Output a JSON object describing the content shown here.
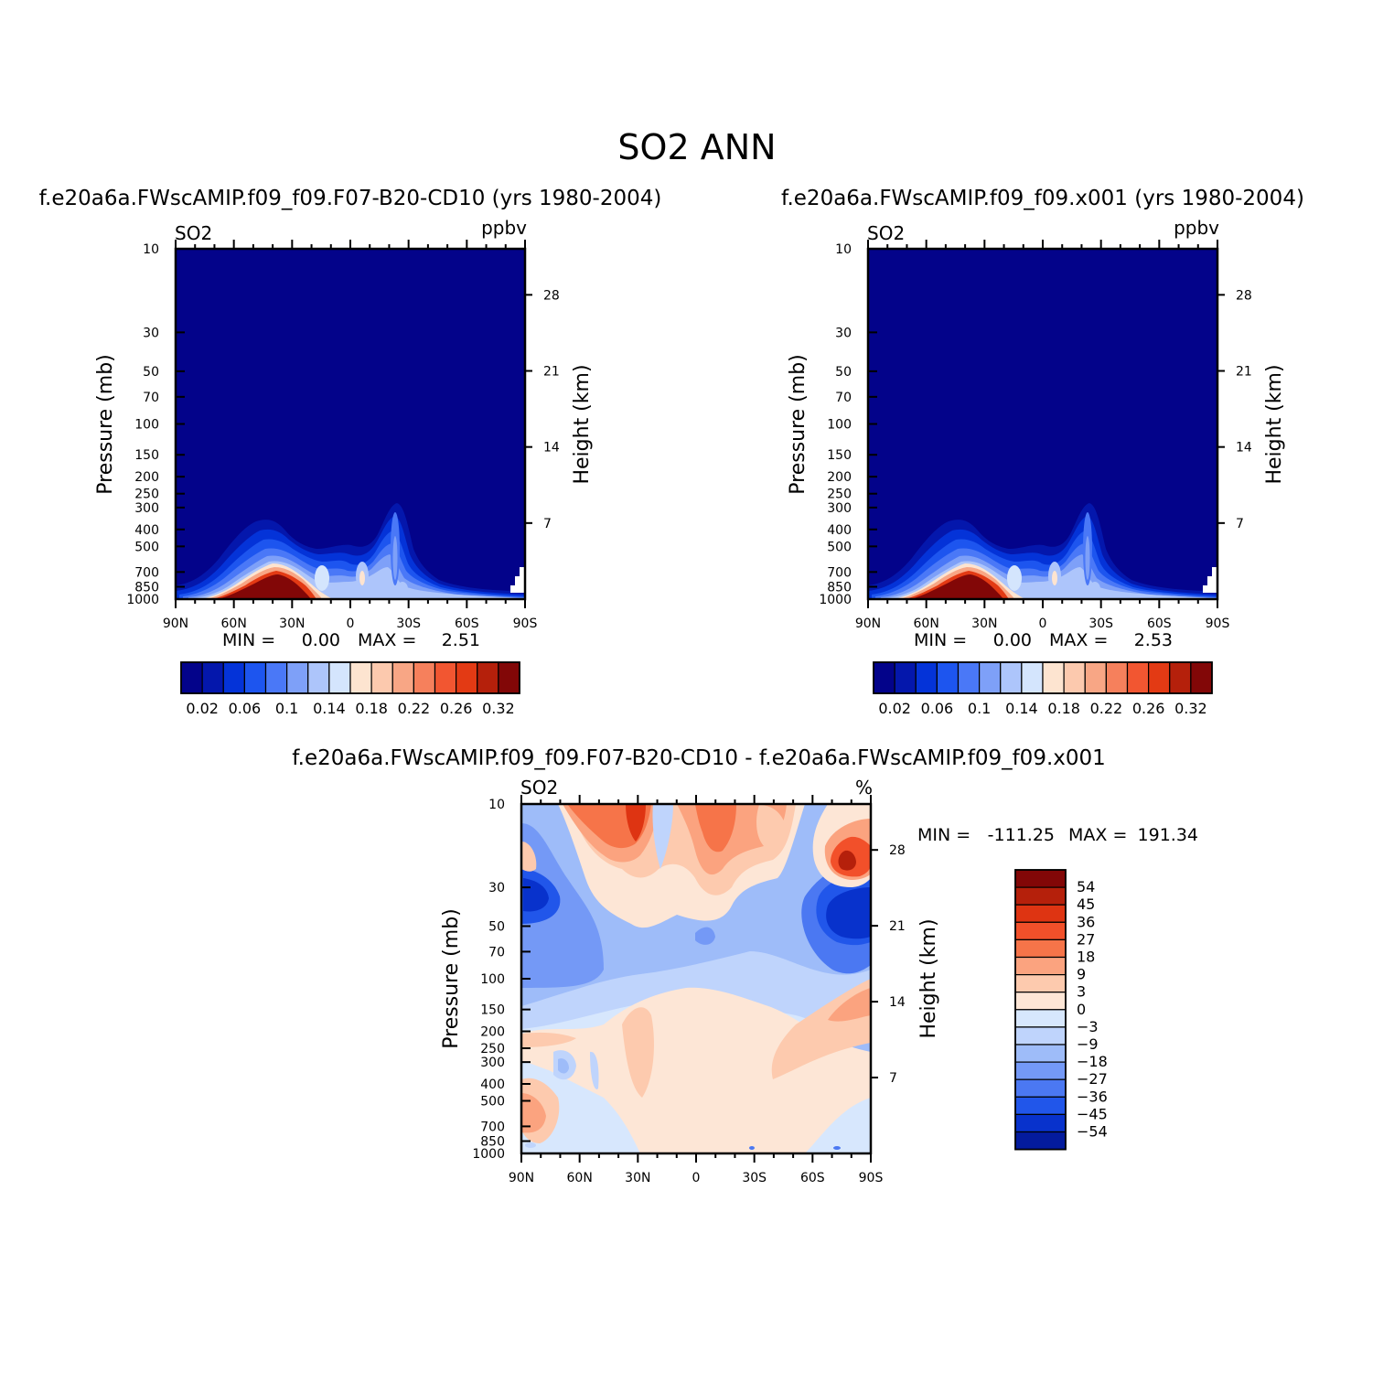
{
  "title": "SO2  ANN",
  "chart_data": [
    {
      "type": "contour",
      "title": "f.e20a6a.FWscAMIP.f09_f09.F07-B20-CD10 (yrs 1980-2004)",
      "variable": "SO2",
      "units": "ppbv",
      "ylabel": "Pressure (mb)",
      "ylabel_right": "Height (km)",
      "x_ticks": [
        "90N",
        "60N",
        "30N",
        "0",
        "30S",
        "60S",
        "90S"
      ],
      "y_ticks": [
        "10",
        "30",
        "50",
        "70",
        "100",
        "150",
        "200",
        "250",
        "300",
        "400",
        "500",
        "700",
        "850",
        "1000"
      ],
      "y_ticks_right": [
        "28",
        "21",
        "14",
        "7"
      ],
      "ylim": [
        1000,
        10
      ],
      "stats": {
        "min_label": "MIN =",
        "min": "0.00",
        "max_label": "MAX =",
        "max": "2.51"
      },
      "colorbar": {
        "levels": [
          "0.02",
          "0.06",
          "0.1",
          "0.14",
          "0.18",
          "0.22",
          "0.26",
          "0.32"
        ]
      }
    },
    {
      "type": "contour",
      "title": "f.e20a6a.FWscAMIP.f09_f09.x001 (yrs 1980-2004)",
      "variable": "SO2",
      "units": "ppbv",
      "ylabel": "Pressure (mb)",
      "ylabel_right": "Height (km)",
      "x_ticks": [
        "90N",
        "60N",
        "30N",
        "0",
        "30S",
        "60S",
        "90S"
      ],
      "y_ticks": [
        "10",
        "30",
        "50",
        "70",
        "100",
        "150",
        "200",
        "250",
        "300",
        "400",
        "500",
        "700",
        "850",
        "1000"
      ],
      "y_ticks_right": [
        "28",
        "21",
        "14",
        "7"
      ],
      "ylim": [
        1000,
        10
      ],
      "stats": {
        "min_label": "MIN =",
        "min": "0.00",
        "max_label": "MAX =",
        "max": "2.53"
      },
      "colorbar": {
        "levels": [
          "0.02",
          "0.06",
          "0.1",
          "0.14",
          "0.18",
          "0.22",
          "0.26",
          "0.32"
        ]
      }
    },
    {
      "type": "contour",
      "title": "f.e20a6a.FWscAMIP.f09_f09.F07-B20-CD10 - f.e20a6a.FWscAMIP.f09_f09.x001",
      "variable": "SO2",
      "units": "%",
      "ylabel": "Pressure (mb)",
      "ylabel_right": "Height (km)",
      "x_ticks": [
        "90N",
        "60N",
        "30N",
        "0",
        "30S",
        "60S",
        "90S"
      ],
      "y_ticks": [
        "10",
        "30",
        "50",
        "70",
        "100",
        "150",
        "200",
        "250",
        "300",
        "400",
        "500",
        "700",
        "850",
        "1000"
      ],
      "y_ticks_right": [
        "28",
        "21",
        "14",
        "7"
      ],
      "ylim": [
        1000,
        10
      ],
      "stats": {
        "min_label": "MIN =",
        "min": "-111.25",
        "max_label": "MAX =",
        "max": "191.34"
      },
      "colorbar": {
        "levels": [
          "54",
          "45",
          "36",
          "27",
          "18",
          "9",
          "3",
          "0",
          "-3",
          "-9",
          "-18",
          "-27",
          "-36",
          "-45",
          "-54"
        ]
      }
    }
  ],
  "colors": {
    "ratio_scale": [
      "#03038a",
      "#0417ac",
      "#0433d8",
      "#1d55ef",
      "#4a78f7",
      "#7ea0f8",
      "#adc5fb",
      "#d4e5fd",
      "#fde4d0",
      "#fcc9ae",
      "#f8a685",
      "#f6805c",
      "#f25631",
      "#e33a14",
      "#b5200b",
      "#820707"
    ],
    "diff_scale": [
      "#820707",
      "#b5200b",
      "#de3412",
      "#f2502a",
      "#f67449",
      "#fba37f",
      "#fdcaae",
      "#fde6d6",
      "#d7e7fd",
      "#bfd4fc",
      "#9ebcf9",
      "#7499f6",
      "#4b78f2",
      "#2156ea",
      "#0832cc",
      "#041b9d"
    ]
  }
}
